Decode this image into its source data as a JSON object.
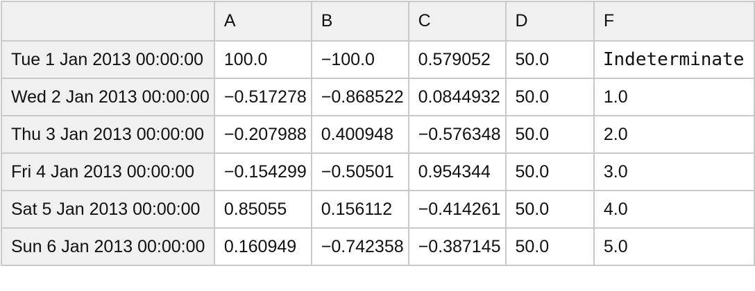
{
  "colors": {
    "header_background": "#f0f0f0",
    "row_label_background": "#f0f0f0",
    "cell_background": "#ffffff",
    "grid_border": "#c9c9c9",
    "text": "#111111"
  },
  "chart_data": {
    "type": "table",
    "title": "",
    "columns": [
      "",
      "A",
      "B",
      "C",
      "D",
      "F"
    ],
    "rows": [
      [
        "Tue 1 Jan 2013 00:00:00",
        "100.0",
        "−100.0",
        "0.579052",
        "50.0",
        "Indeterminate"
      ],
      [
        "Wed 2 Jan 2013 00:00:00",
        "−0.517278",
        "−0.868522",
        "0.0844932",
        "50.0",
        "1.0"
      ],
      [
        "Thu 3 Jan 2013 00:00:00",
        "−0.207988",
        "0.400948",
        "−0.576348",
        "50.0",
        "2.0"
      ],
      [
        "Fri 4 Jan 2013 00:00:00",
        "−0.154299",
        "−0.50501",
        "0.954344",
        "50.0",
        "3.0"
      ],
      [
        "Sat 5 Jan 2013 00:00:00",
        "0.85055",
        "0.156112",
        "−0.414261",
        "50.0",
        "4.0"
      ],
      [
        "Sun 6 Jan 2013 00:00:00",
        "0.160949",
        "−0.742358",
        "−0.387145",
        "50.0",
        "5.0"
      ]
    ]
  }
}
